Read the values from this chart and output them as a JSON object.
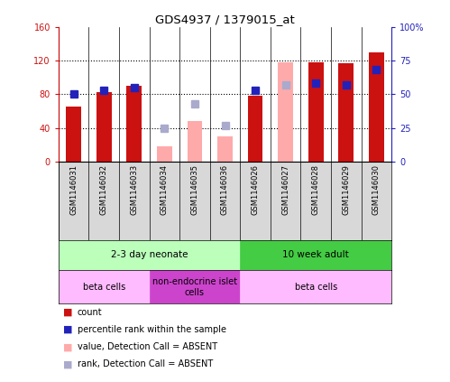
{
  "title": "GDS4937 / 1379015_at",
  "samples": [
    "GSM1146031",
    "GSM1146032",
    "GSM1146033",
    "GSM1146034",
    "GSM1146035",
    "GSM1146036",
    "GSM1146026",
    "GSM1146027",
    "GSM1146028",
    "GSM1146029",
    "GSM1146030"
  ],
  "red_bars": [
    65,
    82,
    90,
    null,
    null,
    null,
    78,
    null,
    118,
    117,
    130
  ],
  "pink_bars": [
    null,
    null,
    null,
    18,
    48,
    30,
    null,
    118,
    null,
    null,
    null
  ],
  "blue_squares": [
    50,
    53,
    55,
    null,
    null,
    null,
    53,
    null,
    58,
    57,
    68
  ],
  "lavender_squares": [
    null,
    null,
    null,
    25,
    43,
    27,
    null,
    57,
    null,
    null,
    null
  ],
  "ylim_left": [
    0,
    160
  ],
  "ylim_right": [
    0,
    100
  ],
  "yticks_left": [
    0,
    40,
    80,
    120,
    160
  ],
  "ytick_labels_left": [
    "0",
    "40",
    "80",
    "120",
    "160"
  ],
  "yticks_right": [
    0,
    25,
    50,
    75,
    100
  ],
  "ytick_labels_right": [
    "0",
    "25",
    "50",
    "75",
    "100%"
  ],
  "age_groups": [
    {
      "label": "2-3 day neonate",
      "start": 0,
      "end": 6,
      "color": "#bbffbb"
    },
    {
      "label": "10 week adult",
      "start": 6,
      "end": 11,
      "color": "#44cc44"
    }
  ],
  "cell_type_groups": [
    {
      "label": "beta cells",
      "start": 0,
      "end": 3,
      "color": "#ffbbff"
    },
    {
      "label": "non-endocrine islet\ncells",
      "start": 3,
      "end": 6,
      "color": "#cc44cc"
    },
    {
      "label": "beta cells",
      "start": 6,
      "end": 11,
      "color": "#ffbbff"
    }
  ],
  "red_color": "#cc1111",
  "pink_color": "#ffaaaa",
  "blue_color": "#2222bb",
  "lavender_color": "#aaaacc",
  "bar_width": 0.5,
  "left_axis_color": "#cc1111",
  "right_axis_color": "#2222bb",
  "legend_items": [
    {
      "color": "#cc1111",
      "label": "count"
    },
    {
      "color": "#2222bb",
      "label": "percentile rank within the sample"
    },
    {
      "color": "#ffaaaa",
      "label": "value, Detection Call = ABSENT"
    },
    {
      "color": "#aaaacc",
      "label": "rank, Detection Call = ABSENT"
    }
  ]
}
